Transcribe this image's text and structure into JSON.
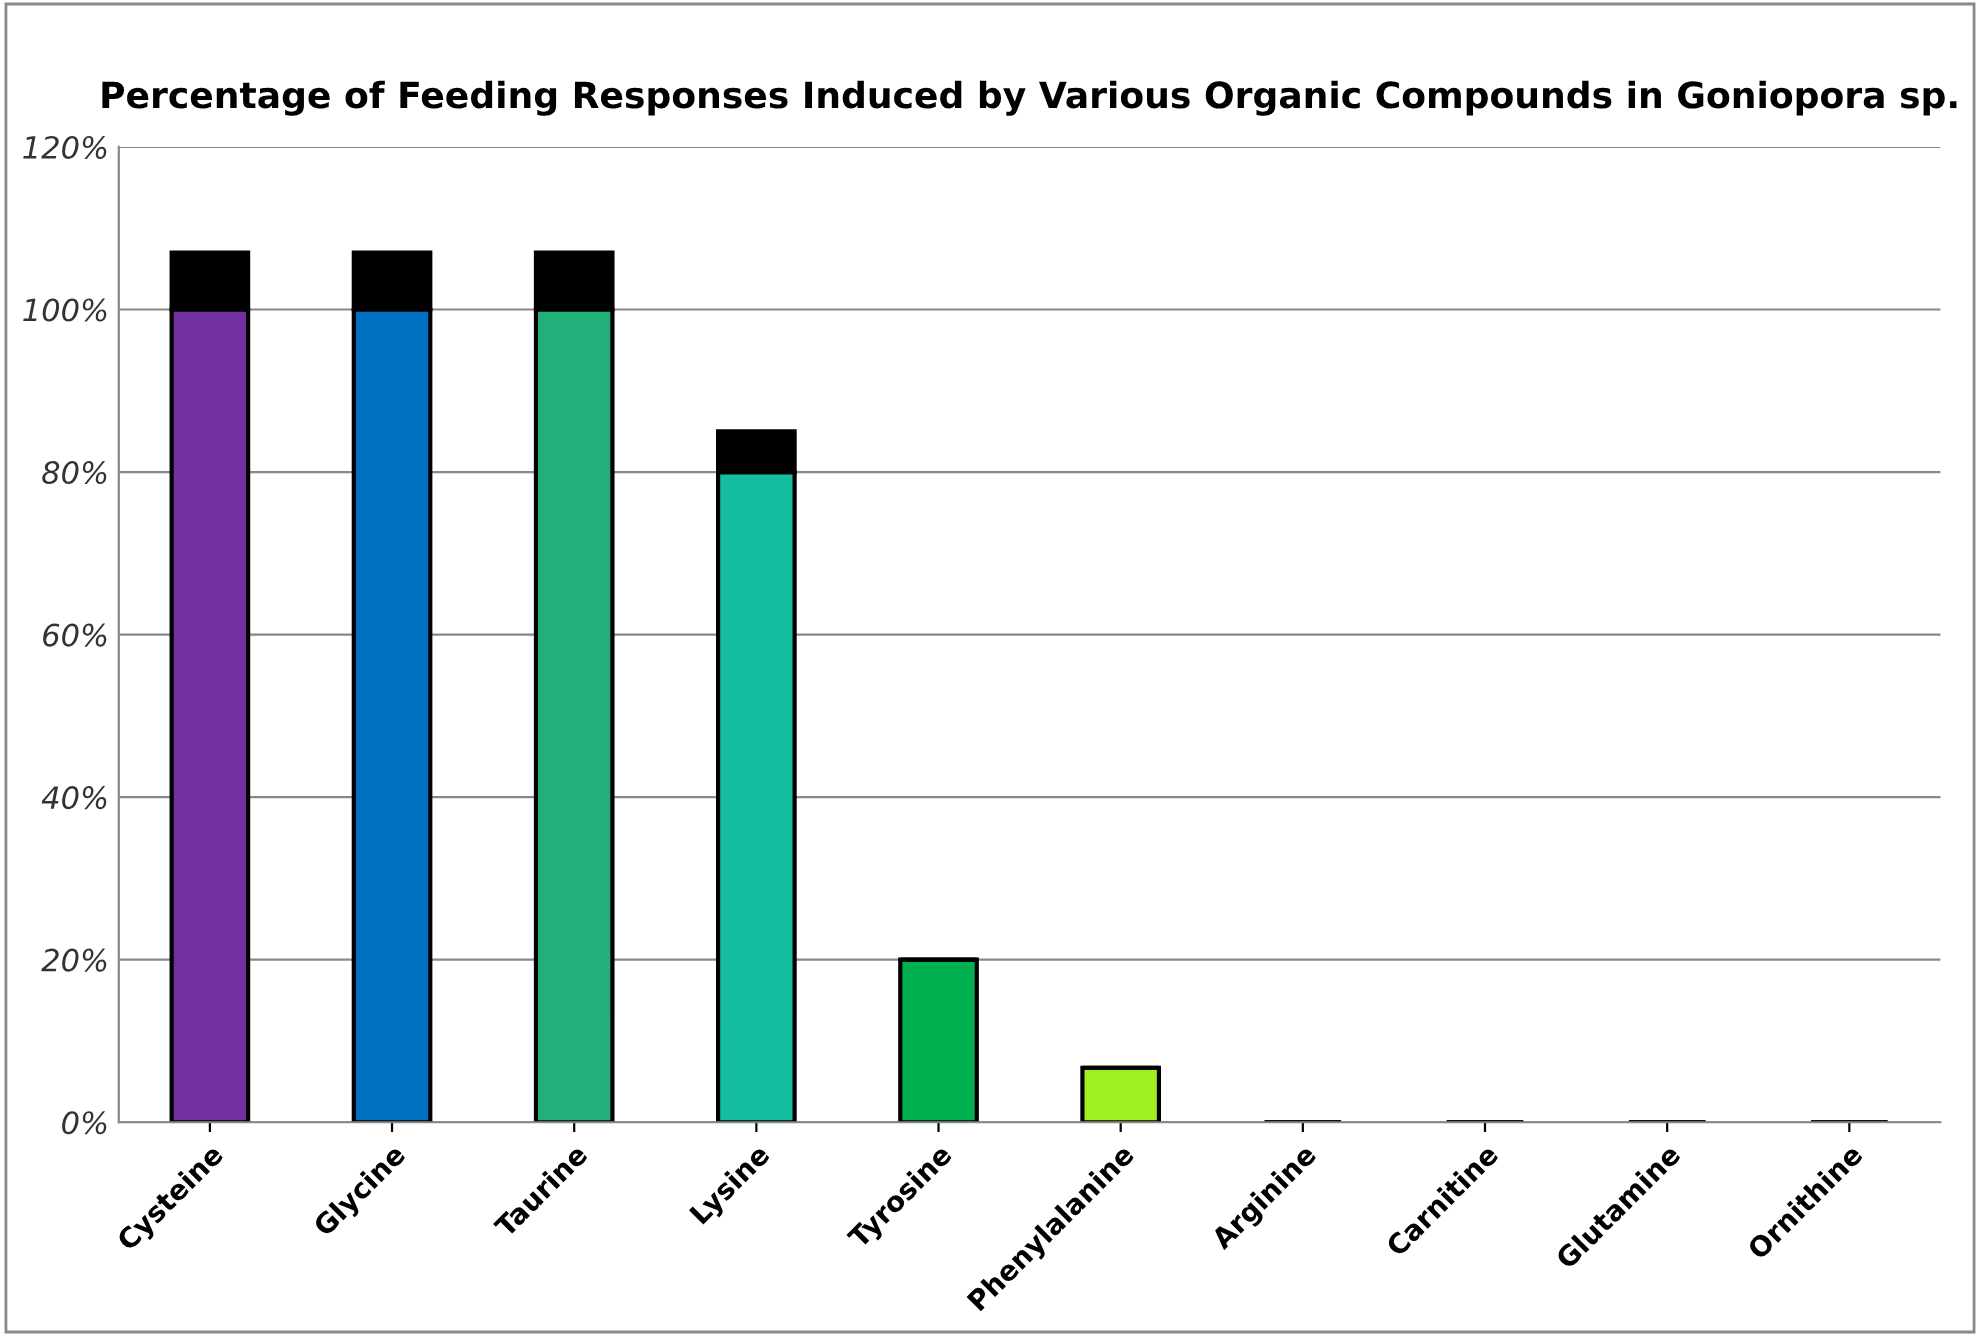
{
  "chart_data": {
    "type": "bar",
    "title": "Percentage of Feeding Responses Induced by Various Organic Compounds in Goniopora sp.",
    "stacked": true,
    "categories": [
      "Cysteine",
      "Glycine",
      "Taurine",
      "Lysine",
      "Tyrosine",
      "Phenylalanine",
      "Arginine",
      "Carnitine",
      "Glutamine",
      "Ornithine"
    ],
    "series": [
      {
        "colors": [
          "#7030a0",
          "#0070c0",
          "#21b07a",
          "#14bca0",
          "#00b050",
          "#a0f020",
          "#000000",
          "#000000",
          "#000000",
          "#000000"
        ],
        "values": [
          100,
          100,
          100,
          80,
          20,
          6.7,
          0,
          0,
          0,
          0
        ]
      },
      {
        "color": "#000000",
        "values": [
          7,
          7,
          7,
          5,
          0,
          0,
          0,
          0,
          0,
          0
        ]
      }
    ],
    "ylim": [
      0,
      120
    ],
    "yticks": [
      {
        "value": 0,
        "label": "0%"
      },
      {
        "value": 20,
        "label": "20%"
      },
      {
        "value": 40,
        "label": "40%"
      },
      {
        "value": 60,
        "label": "60%"
      },
      {
        "value": 80,
        "label": "80%"
      },
      {
        "value": 100,
        "label": "100%"
      },
      {
        "value": 120,
        "label": "120%"
      }
    ],
    "grid": "y"
  }
}
